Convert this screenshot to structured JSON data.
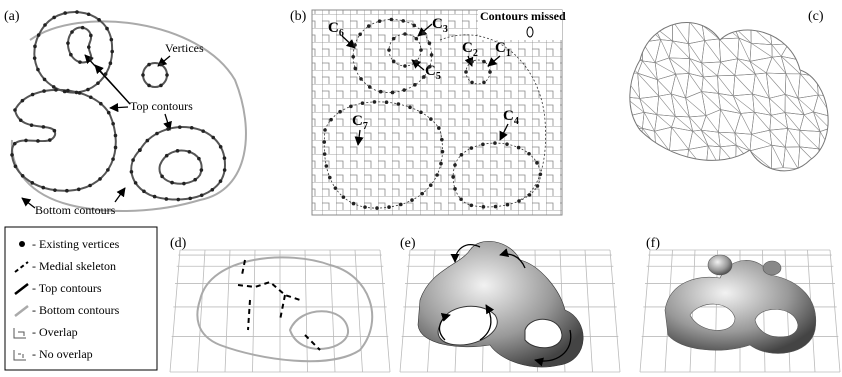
{
  "panels": {
    "a": {
      "label": "(a)",
      "annotations": [
        "Vertices",
        "Top contours",
        "Bottom contours"
      ]
    },
    "b": {
      "label": "(b)",
      "note": "Contours missed",
      "contours": [
        {
          "main": "C",
          "sub": "6"
        },
        {
          "main": "C",
          "sub": "3"
        },
        {
          "main": "C",
          "sub": "2"
        },
        {
          "main": "C",
          "sub": "1"
        },
        {
          "main": "C",
          "sub": "5"
        },
        {
          "main": "C",
          "sub": "7"
        },
        {
          "main": "C",
          "sub": "4"
        }
      ]
    },
    "c": {
      "label": "(c)"
    },
    "d": {
      "label": "(d)"
    },
    "e": {
      "label": "(e)"
    },
    "f": {
      "label": "(f)"
    }
  },
  "legend": {
    "items": [
      "- Existing vertices",
      "- Medial skeleton",
      "- Top contours",
      "- Bottom contours",
      "- Overlap",
      "- No overlap"
    ]
  }
}
